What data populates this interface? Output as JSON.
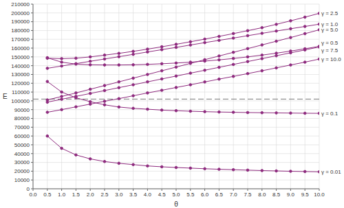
{
  "chart_data": {
    "type": "line",
    "x_label": "θ",
    "y_label": "E",
    "x": [
      0.5,
      1.0,
      1.5,
      2.0,
      2.5,
      3.0,
      3.5,
      4.0,
      4.5,
      5.0,
      5.5,
      6.0,
      6.5,
      7.0,
      7.5,
      8.0,
      8.5,
      9.0,
      9.5,
      10.0
    ],
    "xlim": [
      0,
      10
    ],
    "xticks": [
      {
        "value": 0,
        "label": "0.0"
      },
      {
        "value": 0.5,
        "label": "0.5"
      },
      {
        "value": 1,
        "label": "1.0"
      },
      {
        "value": 1.5,
        "label": "1.5"
      },
      {
        "value": 2,
        "label": "2.0"
      },
      {
        "value": 2.5,
        "label": "2.5"
      },
      {
        "value": 3,
        "label": "3.0"
      },
      {
        "value": 3.5,
        "label": "3.5"
      },
      {
        "value": 4,
        "label": "4.0"
      },
      {
        "value": 4.5,
        "label": "4.5"
      },
      {
        "value": 5,
        "label": "5.0"
      },
      {
        "value": 5.5,
        "label": "5.5"
      },
      {
        "value": 6,
        "label": "6.0"
      },
      {
        "value": 6.5,
        "label": "6.5"
      },
      {
        "value": 7,
        "label": "7.0"
      },
      {
        "value": 7.5,
        "label": "7.5"
      },
      {
        "value": 8,
        "label": "8.0"
      },
      {
        "value": 8.5,
        "label": "8.5"
      },
      {
        "value": 9,
        "label": "9.0"
      },
      {
        "value": 9.5,
        "label": "9.5"
      },
      {
        "value": 10,
        "label": "10.0"
      }
    ],
    "ylim": [
      0,
      210000
    ],
    "yticks": [
      0,
      10000,
      20000,
      30000,
      40000,
      50000,
      60000,
      70000,
      80000,
      90000,
      100000,
      110000,
      120000,
      130000,
      140000,
      150000,
      160000,
      170000,
      180000,
      190000,
      200000,
      210000
    ],
    "grid": true,
    "marker": "circle",
    "reference_lines": [
      {
        "y": 102000,
        "line_style": "dashed",
        "color": "#555555"
      }
    ],
    "series": [
      {
        "name": "γ = 2.5",
        "color": "#8e2a7e",
        "values": [
          148500,
          148000,
          148500,
          150000,
          152000,
          154000,
          156300,
          158800,
          161500,
          164300,
          167200,
          170200,
          173300,
          176500,
          179800,
          183200,
          187000,
          191000,
          195200,
          199500
        ]
      },
      {
        "name": "γ = 1.0",
        "color": "#8e2a7e",
        "values": [
          137000,
          139600,
          142300,
          145000,
          147600,
          150200,
          152900,
          155600,
          158200,
          160800,
          163500,
          166200,
          168800,
          171400,
          174100,
          176800,
          179400,
          182000,
          184600,
          187200
        ]
      },
      {
        "name": "γ = 5.0",
        "color": "#8e2a7e",
        "values": [
          101000,
          105000,
          109000,
          113200,
          117400,
          121600,
          125800,
          130000,
          134200,
          138400,
          142600,
          146800,
          151000,
          155200,
          159400,
          163600,
          167800,
          172000,
          176400,
          180800
        ]
      },
      {
        "name": "γ = 7.5",
        "color": "#8e2a7e",
        "values": [
          98500,
          101800,
          105100,
          108400,
          111700,
          115000,
          118300,
          121600,
          124900,
          128200,
          131500,
          134800,
          138100,
          141400,
          144700,
          148000,
          151300,
          154600,
          157900,
          161300
        ]
      },
      {
        "name": "γ = 0.5",
        "color": "#8e2a7e",
        "values": [
          149000,
          144000,
          141800,
          141000,
          140800,
          140800,
          141000,
          141500,
          142200,
          143000,
          144000,
          145200,
          146600,
          148200,
          150000,
          152000,
          154200,
          156600,
          159200,
          162000
        ]
      },
      {
        "name": "γ = 10.0",
        "color": "#8e2a7e",
        "values": [
          87000,
          90000,
          93200,
          96300,
          99500,
          102500,
          105800,
          109000,
          112000,
          115200,
          118300,
          121500,
          124700,
          127800,
          131000,
          134200,
          137500,
          140800,
          144000,
          147500
        ]
      },
      {
        "name": "γ = 0.1",
        "color": "#8e2a7e",
        "values": [
          122000,
          110000,
          103500,
          99000,
          95500,
          93000,
          91500,
          90500,
          89500,
          88800,
          88200,
          87700,
          87300,
          87000,
          86700,
          86500,
          86300,
          86100,
          85900,
          85800
        ]
      },
      {
        "name": "γ = 0.01",
        "color": "#8e2a7e",
        "values": [
          60000,
          46000,
          38500,
          34000,
          31000,
          29000,
          27500,
          26000,
          25000,
          24200,
          23500,
          22800,
          22200,
          21700,
          21200,
          20700,
          20300,
          19900,
          19600,
          19300
        ]
      }
    ]
  }
}
